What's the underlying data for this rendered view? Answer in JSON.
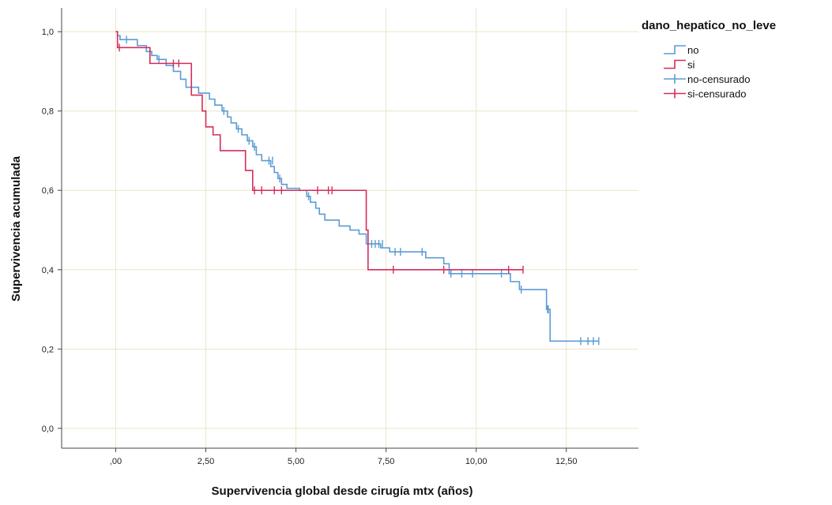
{
  "chart_data": {
    "type": "line",
    "subtype": "kaplan-meier",
    "title": "",
    "xlabel": "Supervivencia global desde cirugía mtx (años)",
    "ylabel": "Supervivencia acumulada",
    "xlim": [
      -1.5,
      14.5
    ],
    "ylim": [
      -0.05,
      1.06
    ],
    "x_ticks": [
      0,
      2.5,
      5,
      7.5,
      10,
      12.5
    ],
    "x_tick_labels": [
      ",00",
      "2,50",
      "5,00",
      "7,50",
      "10,00",
      "12,50"
    ],
    "y_ticks": [
      0,
      0.2,
      0.4,
      0.6,
      0.8,
      1.0
    ],
    "y_tick_labels": [
      "0,0",
      "0,2",
      "0,4",
      "0,6",
      "0,8",
      "1,0"
    ],
    "grid": true,
    "legend": {
      "title": "dano_hepatico_no_leve",
      "position": "top-right",
      "entries": [
        "no",
        "si",
        "no-censurado",
        "si-censurado"
      ]
    },
    "series": [
      {
        "name": "no",
        "color": "#5b9bd5",
        "censor_label": "no-censurado",
        "steps": [
          [
            0,
            1.0
          ],
          [
            0.05,
            0.99
          ],
          [
            0.12,
            0.98
          ],
          [
            0.6,
            0.965
          ],
          [
            0.85,
            0.95
          ],
          [
            1.0,
            0.94
          ],
          [
            1.15,
            0.93
          ],
          [
            1.4,
            0.915
          ],
          [
            1.6,
            0.9
          ],
          [
            1.8,
            0.88
          ],
          [
            1.95,
            0.86
          ],
          [
            2.3,
            0.845
          ],
          [
            2.6,
            0.83
          ],
          [
            2.75,
            0.815
          ],
          [
            2.95,
            0.8
          ],
          [
            3.1,
            0.785
          ],
          [
            3.2,
            0.77
          ],
          [
            3.35,
            0.755
          ],
          [
            3.5,
            0.74
          ],
          [
            3.65,
            0.725
          ],
          [
            3.8,
            0.71
          ],
          [
            3.9,
            0.69
          ],
          [
            4.05,
            0.675
          ],
          [
            4.3,
            0.66
          ],
          [
            4.4,
            0.645
          ],
          [
            4.5,
            0.63
          ],
          [
            4.6,
            0.615
          ],
          [
            4.75,
            0.605
          ],
          [
            5.1,
            0.6
          ],
          [
            5.3,
            0.585
          ],
          [
            5.4,
            0.57
          ],
          [
            5.55,
            0.555
          ],
          [
            5.65,
            0.54
          ],
          [
            5.8,
            0.525
          ],
          [
            6.2,
            0.51
          ],
          [
            6.5,
            0.5
          ],
          [
            6.75,
            0.49
          ],
          [
            6.95,
            0.465
          ],
          [
            7.35,
            0.455
          ],
          [
            7.6,
            0.445
          ],
          [
            8.6,
            0.43
          ],
          [
            9.1,
            0.415
          ],
          [
            9.25,
            0.39
          ],
          [
            10.95,
            0.37
          ],
          [
            11.2,
            0.35
          ],
          [
            11.95,
            0.3
          ],
          [
            12.05,
            0.22
          ],
          [
            13.4,
            0.22
          ]
        ],
        "censored": [
          [
            0.3,
            0.98
          ],
          [
            1.2,
            0.93
          ],
          [
            3.0,
            0.8
          ],
          [
            3.4,
            0.755
          ],
          [
            3.7,
            0.725
          ],
          [
            3.85,
            0.71
          ],
          [
            4.25,
            0.675
          ],
          [
            4.35,
            0.675
          ],
          [
            4.55,
            0.63
          ],
          [
            5.35,
            0.585
          ],
          [
            7.0,
            0.465
          ],
          [
            7.1,
            0.465
          ],
          [
            7.2,
            0.465
          ],
          [
            7.3,
            0.465
          ],
          [
            7.4,
            0.465
          ],
          [
            7.75,
            0.445
          ],
          [
            7.9,
            0.445
          ],
          [
            8.5,
            0.445
          ],
          [
            9.3,
            0.39
          ],
          [
            9.6,
            0.39
          ],
          [
            9.9,
            0.39
          ],
          [
            10.7,
            0.39
          ],
          [
            11.25,
            0.35
          ],
          [
            11.98,
            0.3
          ],
          [
            12.0,
            0.3
          ],
          [
            12.9,
            0.22
          ],
          [
            13.1,
            0.22
          ],
          [
            13.25,
            0.22
          ],
          [
            13.4,
            0.22
          ]
        ]
      },
      {
        "name": "si",
        "color": "#d62d5a",
        "censor_label": "si-censurado",
        "steps": [
          [
            0,
            1.0
          ],
          [
            0.05,
            0.96
          ],
          [
            0.8,
            0.96
          ],
          [
            0.95,
            0.92
          ],
          [
            2.0,
            0.92
          ],
          [
            2.1,
            0.84
          ],
          [
            2.4,
            0.8
          ],
          [
            2.5,
            0.76
          ],
          [
            2.7,
            0.74
          ],
          [
            2.9,
            0.7
          ],
          [
            3.6,
            0.65
          ],
          [
            3.8,
            0.6
          ],
          [
            6.85,
            0.6
          ],
          [
            6.95,
            0.5
          ],
          [
            7.0,
            0.4
          ],
          [
            11.3,
            0.4
          ]
        ],
        "censored": [
          [
            0.1,
            0.96
          ],
          [
            1.6,
            0.92
          ],
          [
            1.75,
            0.92
          ],
          [
            3.85,
            0.6
          ],
          [
            4.05,
            0.6
          ],
          [
            4.4,
            0.6
          ],
          [
            4.6,
            0.6
          ],
          [
            5.6,
            0.6
          ],
          [
            5.9,
            0.6
          ],
          [
            6.0,
            0.6
          ],
          [
            7.7,
            0.4
          ],
          [
            9.1,
            0.4
          ],
          [
            10.9,
            0.4
          ],
          [
            11.3,
            0.4
          ]
        ]
      }
    ]
  }
}
